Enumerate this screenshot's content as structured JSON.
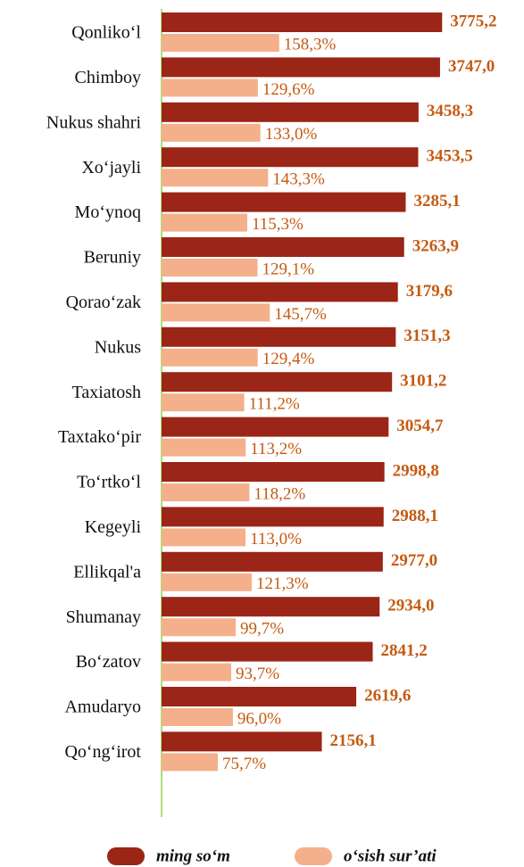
{
  "chart_data": {
    "type": "bar",
    "orientation": "horizontal",
    "categories": [
      "Qonliko‘l",
      "Chimboy",
      "Nukus shahri",
      "Xo‘jayli",
      "Mo‘ynoq",
      "Beruniy",
      "Qorao‘zak",
      "Nukus",
      "Taxiatosh",
      "Taxtako‘pir",
      "To‘rtko‘l",
      "Kegeyli",
      "Ellikqal'a",
      "Shumanay",
      "Bo‘zatov",
      "Amudaryo",
      "Qo‘ng‘irot"
    ],
    "series": [
      {
        "name": "ming so‘m",
        "color": "#9b2516",
        "values": [
          3775.2,
          3747.0,
          3458.3,
          3453.5,
          3285.1,
          3263.9,
          3179.6,
          3151.3,
          3101.2,
          3054.7,
          2998.8,
          2988.1,
          2977.0,
          2934.0,
          2841.2,
          2619.6,
          2156.1
        ],
        "value_labels": [
          "3775,2",
          "3747,0",
          "3458,3",
          "3453,5",
          "3285,1",
          "3263,9",
          "3179,6",
          "3151,3",
          "3101,2",
          "3054,7",
          "2998,8",
          "2988,1",
          "2977,0",
          "2934,0",
          "2841,2",
          "2619,6",
          "2156,1"
        ]
      },
      {
        "name": "o‘sish sur’ati",
        "color": "#f4b08a",
        "axis": "x2",
        "values": [
          158.3,
          129.6,
          133.0,
          143.3,
          115.3,
          129.1,
          145.7,
          129.4,
          111.2,
          113.2,
          118.2,
          113.0,
          121.3,
          99.7,
          93.7,
          96.0,
          75.7
        ],
        "value_labels": [
          "158,3%",
          "129,6%",
          "133,0%",
          "143,3%",
          "115,3%",
          "129,1%",
          "145,7%",
          "129,4%",
          "111,2%",
          "113,2%",
          "118,2%",
          "113,0%",
          "121,3%",
          "99,7%",
          "93,7%",
          "96,0%",
          "75,7%"
        ]
      }
    ],
    "xlim": [
      0,
      4000
    ],
    "x2lim": [
      0,
      400
    ],
    "label_color": "#c55a11",
    "axis_color": "#92d050"
  }
}
